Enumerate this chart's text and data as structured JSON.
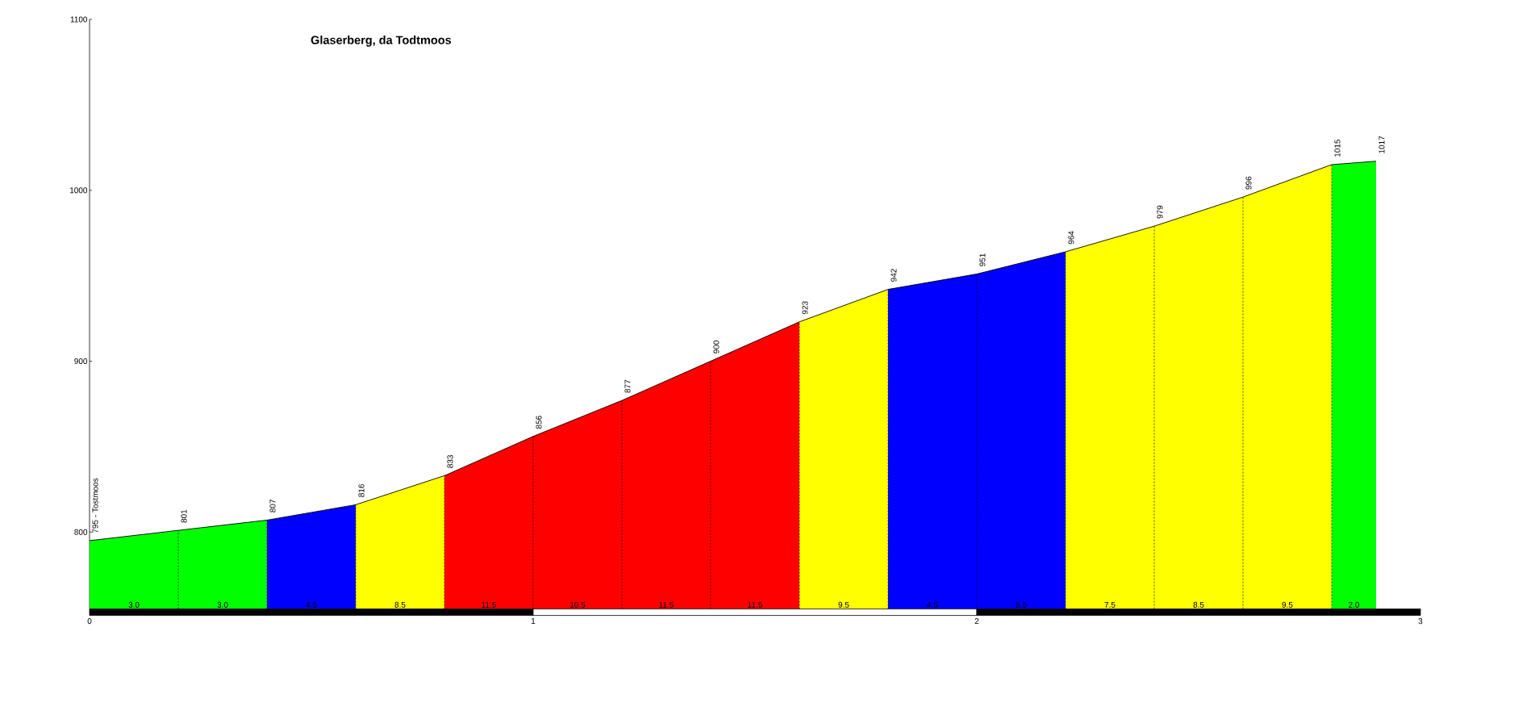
{
  "chart_data": {
    "type": "area",
    "title": "Glaserberg, da Todtmoos",
    "series": [
      {
        "color": "#00ff00",
        "x": [
          0,
          0.2,
          0.4
        ],
        "values": [
          795,
          801,
          807
        ],
        "value_labels": [
          "795 - Tostmoos",
          "801",
          "807"
        ]
      },
      {
        "color": "#0000ff",
        "x": [
          0.4,
          0.6
        ],
        "values": [
          807,
          816
        ],
        "value_labels": [
          null,
          "816"
        ]
      },
      {
        "color": "#ffff00",
        "x": [
          0.6,
          0.8
        ],
        "values": [
          816,
          833
        ],
        "value_labels": [
          null,
          "833"
        ]
      },
      {
        "color": "#ff0000",
        "x": [
          0.8,
          1.0,
          1.2,
          1.4,
          1.6
        ],
        "values": [
          833,
          856,
          877,
          900,
          923
        ],
        "value_labels": [
          null,
          "856",
          "877",
          "900",
          "923"
        ]
      },
      {
        "color": "#ffff00",
        "x": [
          1.6,
          1.8
        ],
        "values": [
          923,
          942
        ],
        "value_labels": [
          null,
          "942"
        ]
      },
      {
        "color": "#0000ff",
        "x": [
          1.8,
          2.0,
          2.2
        ],
        "values": [
          942,
          951,
          964
        ],
        "value_labels": [
          null,
          "951",
          "964"
        ]
      },
      {
        "color": "#ffff00",
        "x": [
          2.2,
          2.4,
          2.6,
          2.8
        ],
        "values": [
          964,
          979,
          996,
          1015
        ],
        "value_labels": [
          null,
          "979",
          "996",
          "1015"
        ]
      },
      {
        "color": "#00ff00",
        "x": [
          2.8,
          2.9
        ],
        "values": [
          1015,
          1017
        ],
        "value_labels": [
          null,
          "1017"
        ]
      }
    ],
    "annotations": [
      "3.0",
      "3.0",
      "4.5",
      "8.5",
      "11.5",
      "10.5",
      "11.5",
      "11.5",
      "9.5",
      "4.5",
      "6.5",
      "7.5",
      "8.5",
      "9.5",
      "2.0"
    ],
    "xlim": [
      0,
      3
    ],
    "ylim": [
      755,
      1100
    ],
    "xticks": [
      0,
      1,
      2,
      3
    ],
    "yticks": [
      800,
      900,
      1000,
      1100
    ]
  }
}
